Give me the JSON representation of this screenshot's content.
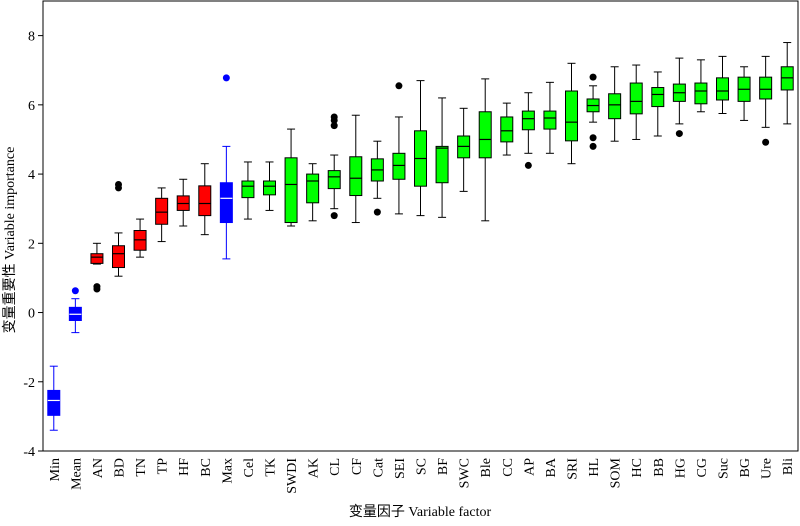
{
  "chart_data": {
    "type": "box",
    "x_label": "变量因子 Variable factor",
    "y_label": "变量重要性 Variable importance",
    "ylim": [
      -4,
      9
    ],
    "yticks": [
      -4,
      -2,
      0,
      2,
      4,
      6,
      8
    ],
    "categories": [
      "Min",
      "Mean",
      "AN",
      "BD",
      "TN",
      "TP",
      "HF",
      "BC",
      "Max",
      "Cel",
      "TK",
      "SWDI",
      "AK",
      "CL",
      "CF",
      "Cat",
      "SEI",
      "SC",
      "BF",
      "SWC",
      "Ble",
      "CC",
      "AP",
      "BA",
      "SRI",
      "HL",
      "SOM",
      "HC",
      "BB",
      "HG",
      "CG",
      "Suc",
      "BG",
      "Ure",
      "Bli"
    ],
    "boxes": [
      {
        "min": -3.4,
        "q1": -2.97,
        "median": -2.54,
        "q3": -2.25,
        "max": -1.55,
        "outliers": [],
        "color": "#0000ff"
      },
      {
        "min": -0.58,
        "q1": -0.23,
        "median": -0.05,
        "q3": 0.15,
        "max": 0.4,
        "outliers": [
          0.63
        ],
        "color": "#0000ff"
      },
      {
        "min": 1.4,
        "q1": 1.42,
        "median": 1.6,
        "q3": 1.7,
        "max": 2.0,
        "outliers": [
          0.75,
          0.68
        ],
        "color": "#ff0000"
      },
      {
        "min": 1.05,
        "q1": 1.3,
        "median": 1.7,
        "q3": 1.93,
        "max": 2.3,
        "outliers": [
          3.7,
          3.6
        ],
        "color": "#ff0000"
      },
      {
        "min": 1.6,
        "q1": 1.8,
        "median": 2.1,
        "q3": 2.37,
        "max": 2.7,
        "outliers": [],
        "color": "#ff0000"
      },
      {
        "min": 2.05,
        "q1": 2.55,
        "median": 2.9,
        "q3": 3.3,
        "max": 3.6,
        "outliers": [],
        "color": "#ff0000"
      },
      {
        "min": 2.5,
        "q1": 2.95,
        "median": 3.15,
        "q3": 3.37,
        "max": 3.85,
        "outliers": [],
        "color": "#ff0000"
      },
      {
        "min": 2.25,
        "q1": 2.8,
        "median": 3.15,
        "q3": 3.66,
        "max": 4.3,
        "outliers": [],
        "color": "#ff0000"
      },
      {
        "min": 1.55,
        "q1": 2.6,
        "median": 3.3,
        "q3": 3.75,
        "max": 4.8,
        "outliers": [
          6.78
        ],
        "color": "#0000ff"
      },
      {
        "min": 2.7,
        "q1": 3.32,
        "median": 3.65,
        "q3": 3.8,
        "max": 4.35,
        "outliers": [],
        "color": "#00ff00"
      },
      {
        "min": 2.95,
        "q1": 3.4,
        "median": 3.65,
        "q3": 3.8,
        "max": 4.35,
        "outliers": [],
        "color": "#00ff00"
      },
      {
        "min": 2.5,
        "q1": 2.6,
        "median": 3.7,
        "q3": 4.47,
        "max": 5.3,
        "outliers": [],
        "color": "#00ff00"
      },
      {
        "min": 2.65,
        "q1": 3.17,
        "median": 3.8,
        "q3": 4.0,
        "max": 4.3,
        "outliers": [],
        "color": "#00ff00"
      },
      {
        "min": 3.0,
        "q1": 3.58,
        "median": 3.92,
        "q3": 4.1,
        "max": 4.55,
        "outliers": [
          5.65,
          5.55,
          5.4,
          2.8
        ],
        "color": "#00ff00"
      },
      {
        "min": 2.6,
        "q1": 3.38,
        "median": 3.88,
        "q3": 4.5,
        "max": 5.7,
        "outliers": [],
        "color": "#00ff00"
      },
      {
        "min": 3.3,
        "q1": 3.8,
        "median": 4.12,
        "q3": 4.44,
        "max": 4.95,
        "outliers": [
          2.9
        ],
        "color": "#00ff00"
      },
      {
        "min": 2.85,
        "q1": 3.85,
        "median": 4.25,
        "q3": 4.6,
        "max": 5.65,
        "outliers": [
          6.55
        ],
        "color": "#00ff00"
      },
      {
        "min": 2.8,
        "q1": 3.65,
        "median": 4.45,
        "q3": 5.25,
        "max": 6.7,
        "outliers": [],
        "color": "#00ff00"
      },
      {
        "min": 2.75,
        "q1": 3.75,
        "median": 4.75,
        "q3": 4.8,
        "max": 6.2,
        "outliers": [],
        "color": "#00ff00"
      },
      {
        "min": 3.5,
        "q1": 4.47,
        "median": 4.8,
        "q3": 5.1,
        "max": 5.9,
        "outliers": [],
        "color": "#00ff00"
      },
      {
        "min": 2.65,
        "q1": 4.47,
        "median": 5.0,
        "q3": 5.8,
        "max": 6.75,
        "outliers": [],
        "color": "#00ff00"
      },
      {
        "min": 4.55,
        "q1": 4.93,
        "median": 5.25,
        "q3": 5.65,
        "max": 6.05,
        "outliers": [],
        "color": "#00ff00"
      },
      {
        "min": 4.6,
        "q1": 5.28,
        "median": 5.6,
        "q3": 5.82,
        "max": 6.35,
        "outliers": [
          4.25
        ],
        "color": "#00ff00"
      },
      {
        "min": 4.6,
        "q1": 5.3,
        "median": 5.62,
        "q3": 5.82,
        "max": 6.65,
        "outliers": [],
        "color": "#00ff00"
      },
      {
        "min": 4.3,
        "q1": 4.96,
        "median": 5.5,
        "q3": 6.4,
        "max": 7.2,
        "outliers": [],
        "color": "#00ff00"
      },
      {
        "min": 5.5,
        "q1": 5.8,
        "median": 5.98,
        "q3": 6.17,
        "max": 6.55,
        "outliers": [
          6.8,
          5.05,
          4.8
        ],
        "color": "#00ff00"
      },
      {
        "min": 4.95,
        "q1": 5.6,
        "median": 6.0,
        "q3": 6.32,
        "max": 7.1,
        "outliers": [],
        "color": "#00ff00"
      },
      {
        "min": 5.0,
        "q1": 5.74,
        "median": 6.1,
        "q3": 6.63,
        "max": 7.15,
        "outliers": [],
        "color": "#00ff00"
      },
      {
        "min": 5.1,
        "q1": 5.95,
        "median": 6.3,
        "q3": 6.5,
        "max": 6.95,
        "outliers": [],
        "color": "#00ff00"
      },
      {
        "min": 5.45,
        "q1": 6.1,
        "median": 6.35,
        "q3": 6.6,
        "max": 7.35,
        "outliers": [
          5.17
        ],
        "color": "#00ff00"
      },
      {
        "min": 5.8,
        "q1": 6.03,
        "median": 6.4,
        "q3": 6.63,
        "max": 7.3,
        "outliers": [],
        "color": "#00ff00"
      },
      {
        "min": 5.75,
        "q1": 6.14,
        "median": 6.4,
        "q3": 6.78,
        "max": 7.4,
        "outliers": [],
        "color": "#00ff00"
      },
      {
        "min": 5.55,
        "q1": 6.1,
        "median": 6.45,
        "q3": 6.8,
        "max": 7.1,
        "outliers": [],
        "color": "#00ff00"
      },
      {
        "min": 5.35,
        "q1": 6.17,
        "median": 6.45,
        "q3": 6.8,
        "max": 7.4,
        "outliers": [
          4.92
        ],
        "color": "#00ff00"
      },
      {
        "min": 5.45,
        "q1": 6.43,
        "median": 6.78,
        "q3": 7.1,
        "max": 7.8,
        "outliers": [],
        "color": "#00ff00"
      }
    ]
  }
}
